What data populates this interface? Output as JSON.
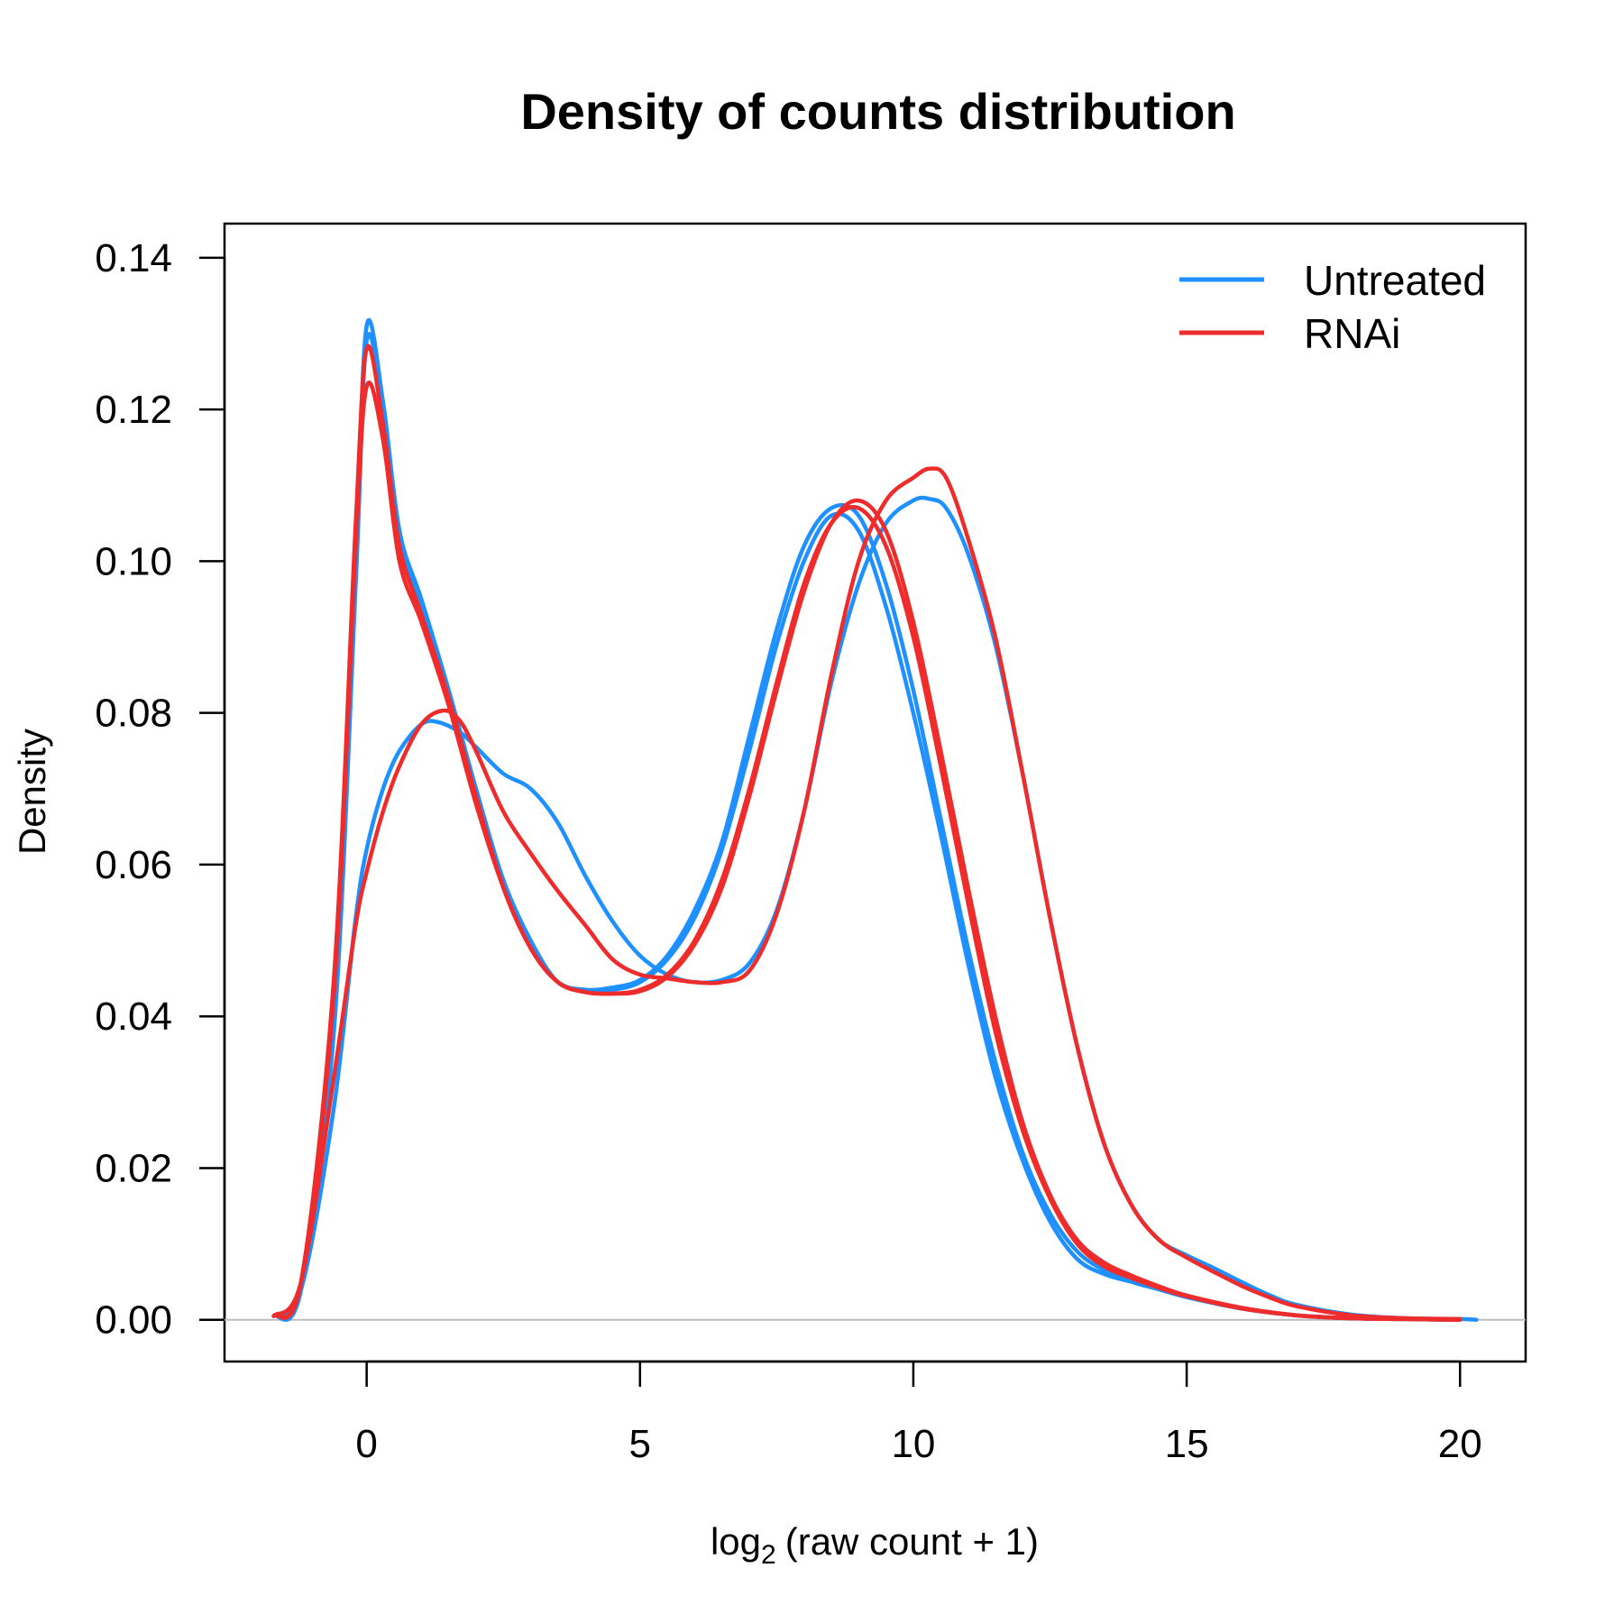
{
  "chart_data": {
    "type": "line",
    "title": "Density of counts distribution",
    "xlabel": {
      "prefix": "log",
      "subscript": "2",
      "expr": "(raw count + 1)"
    },
    "ylabel": "Density",
    "xlim": [
      -2.6,
      21.2
    ],
    "ylim": [
      -0.0055,
      0.1445
    ],
    "xticks": [
      0,
      5,
      10,
      15,
      20
    ],
    "yticks": [
      0.0,
      0.02,
      0.04,
      0.06,
      0.08,
      0.1,
      0.12,
      0.14
    ],
    "xtick_labels": [
      "0",
      "5",
      "10",
      "15",
      "20"
    ],
    "ytick_labels": [
      "0.00",
      "0.02",
      "0.04",
      "0.06",
      "0.08",
      "0.10",
      "0.12",
      "0.14"
    ],
    "baseline": 0,
    "colors": {
      "Untreated": "#1E90FF",
      "RNAi": "#EE2C2C",
      "baseline": "#bebebe"
    },
    "legend": {
      "position": "top-right",
      "entries": [
        "Untreated",
        "RNAi"
      ]
    },
    "series": [
      {
        "name": "Untreated 1",
        "group": "Untreated",
        "x": [
          -1.7,
          -1.2,
          -0.6,
          -0.2,
          0,
          0.3,
          0.6,
          1,
          1.5,
          2,
          2.5,
          3,
          3.5,
          4,
          4.5,
          5,
          5.5,
          6,
          6.5,
          7,
          7.5,
          8,
          8.5,
          9,
          9.5,
          10,
          10.5,
          11,
          11.5,
          12,
          12.5,
          13,
          13.5,
          14,
          14.5,
          15,
          16,
          17,
          18,
          19,
          20
        ],
        "y": [
          0.0005,
          0.004,
          0.04,
          0.1,
          0.131,
          0.121,
          0.104,
          0.095,
          0.083,
          0.07,
          0.058,
          0.05,
          0.0445,
          0.0435,
          0.0435,
          0.0445,
          0.0475,
          0.053,
          0.062,
          0.075,
          0.089,
          0.1,
          0.106,
          0.104,
          0.094,
          0.08,
          0.064,
          0.047,
          0.032,
          0.021,
          0.013,
          0.008,
          0.006,
          0.005,
          0.004,
          0.003,
          0.0015,
          0.0006,
          0.0002,
          0.0001,
          0
        ]
      },
      {
        "name": "Untreated 2",
        "group": "Untreated",
        "x": [
          -1.7,
          -1.2,
          -0.6,
          -0.2,
          0,
          0.3,
          0.6,
          1,
          1.5,
          2,
          2.5,
          3,
          3.5,
          4,
          4.5,
          5,
          5.5,
          6,
          6.5,
          7,
          7.5,
          8,
          8.5,
          9,
          9.5,
          10,
          10.5,
          11,
          11.5,
          12,
          12.5,
          13,
          13.5,
          14,
          14.5,
          15,
          16,
          17,
          18,
          19,
          20
        ],
        "y": [
          0.0005,
          0.004,
          0.038,
          0.097,
          0.129,
          0.12,
          0.104,
          0.094,
          0.082,
          0.069,
          0.057,
          0.049,
          0.0445,
          0.0435,
          0.0438,
          0.0448,
          0.048,
          0.054,
          0.063,
          0.077,
          0.091,
          0.102,
          0.107,
          0.106,
          0.097,
          0.083,
          0.066,
          0.049,
          0.034,
          0.022,
          0.014,
          0.009,
          0.0065,
          0.005,
          0.004,
          0.003,
          0.0015,
          0.0006,
          0.0002,
          0.0001,
          0
        ]
      },
      {
        "name": "Untreated 3",
        "group": "Untreated",
        "x": [
          -1.7,
          -1.2,
          -0.6,
          -0.2,
          0,
          0.3,
          0.6,
          1,
          1.3,
          1.7,
          2,
          2.5,
          3,
          3.5,
          4,
          4.5,
          5,
          5.5,
          6,
          6.5,
          7,
          7.5,
          8,
          8.5,
          9,
          9.5,
          10,
          10.3,
          10.6,
          11,
          11.5,
          12,
          12.5,
          13,
          13.5,
          14,
          14.5,
          15,
          15.5,
          16,
          16.5,
          17,
          18,
          19,
          20,
          20.3
        ],
        "y": [
          0.0005,
          0.004,
          0.028,
          0.053,
          0.062,
          0.07,
          0.075,
          0.0785,
          0.0788,
          0.0775,
          0.0755,
          0.072,
          0.07,
          0.0655,
          0.0585,
          0.0525,
          0.048,
          0.0455,
          0.0445,
          0.0448,
          0.047,
          0.054,
          0.067,
          0.084,
          0.097,
          0.105,
          0.108,
          0.1082,
          0.107,
          0.101,
          0.089,
          0.072,
          0.053,
          0.036,
          0.023,
          0.015,
          0.0105,
          0.0085,
          0.0068,
          0.005,
          0.0033,
          0.002,
          0.0007,
          0.0002,
          0.0001,
          0
        ]
      },
      {
        "name": "RNAi 1",
        "group": "RNAi",
        "x": [
          -1.7,
          -1.2,
          -0.6,
          -0.2,
          0,
          0.3,
          0.6,
          1,
          1.5,
          2,
          2.5,
          3,
          3.5,
          4,
          4.5,
          5,
          5.5,
          6,
          6.5,
          7,
          7.5,
          8,
          8.5,
          9,
          9.5,
          10,
          10.5,
          11,
          11.5,
          12,
          12.5,
          13,
          13.5,
          14,
          14.5,
          15,
          16,
          17,
          18,
          19,
          20
        ],
        "y": [
          0.0005,
          0.005,
          0.045,
          0.105,
          0.128,
          0.118,
          0.102,
          0.093,
          0.082,
          0.069,
          0.057,
          0.049,
          0.0445,
          0.0432,
          0.043,
          0.0435,
          0.0455,
          0.05,
          0.058,
          0.07,
          0.084,
          0.097,
          0.105,
          0.107,
          0.102,
          0.09,
          0.073,
          0.055,
          0.038,
          0.025,
          0.016,
          0.01,
          0.007,
          0.0055,
          0.0042,
          0.0031,
          0.0015,
          0.0006,
          0.0002,
          0.0001,
          0
        ]
      },
      {
        "name": "RNAi 2",
        "group": "RNAi",
        "x": [
          -1.7,
          -1.2,
          -0.6,
          -0.2,
          0,
          0.3,
          0.6,
          1,
          1.5,
          2,
          2.5,
          3,
          3.5,
          4,
          4.5,
          5,
          5.5,
          6,
          6.5,
          7,
          7.5,
          8,
          8.5,
          9,
          9.5,
          10,
          10.5,
          11,
          11.5,
          12,
          12.5,
          13,
          13.5,
          14,
          14.5,
          15,
          16,
          17,
          18,
          19,
          20
        ],
        "y": [
          0.0005,
          0.005,
          0.043,
          0.102,
          0.123,
          0.116,
          0.1,
          0.092,
          0.081,
          0.068,
          0.057,
          0.049,
          0.0445,
          0.0432,
          0.043,
          0.0433,
          0.0452,
          0.0495,
          0.057,
          0.069,
          0.083,
          0.096,
          0.105,
          0.108,
          0.104,
          0.092,
          0.075,
          0.057,
          0.04,
          0.026,
          0.0165,
          0.0105,
          0.0075,
          0.0058,
          0.0044,
          0.0032,
          0.0016,
          0.0006,
          0.0002,
          0.0001,
          0
        ]
      },
      {
        "name": "RNAi 3",
        "group": "RNAi",
        "x": [
          -1.7,
          -1.2,
          -0.6,
          -0.2,
          0,
          0.3,
          0.6,
          1,
          1.4,
          1.7,
          2,
          2.5,
          3,
          3.5,
          4,
          4.5,
          5,
          5.5,
          6,
          6.5,
          7,
          7.5,
          8,
          8.5,
          9,
          9.5,
          10,
          10.3,
          10.6,
          11,
          11.5,
          12,
          12.5,
          13,
          13.5,
          14,
          14.5,
          15,
          15.5,
          16,
          16.5,
          17,
          18,
          19,
          20
        ],
        "y": [
          0.0005,
          0.005,
          0.032,
          0.052,
          0.059,
          0.067,
          0.073,
          0.0785,
          0.0803,
          0.079,
          0.075,
          0.067,
          0.0615,
          0.0565,
          0.052,
          0.0475,
          0.0455,
          0.045,
          0.0445,
          0.0445,
          0.046,
          0.0535,
          0.067,
          0.085,
          0.1,
          0.108,
          0.111,
          0.1122,
          0.111,
          0.103,
          0.09,
          0.072,
          0.053,
          0.036,
          0.023,
          0.015,
          0.0105,
          0.0082,
          0.0063,
          0.0045,
          0.003,
          0.0018,
          0.0006,
          0.0002,
          0.0001
        ]
      }
    ]
  }
}
